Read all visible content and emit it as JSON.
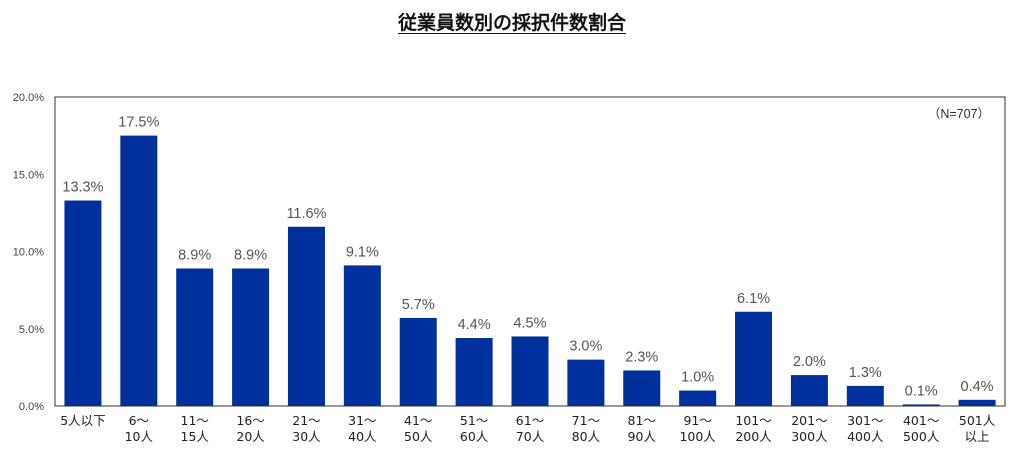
{
  "chart_data": {
    "type": "bar",
    "title": "従業員数別の採択件数割合",
    "annotation": "（N=707）",
    "categories": [
      [
        "5人以下"
      ],
      [
        "6～",
        "10人"
      ],
      [
        "11～",
        "15人"
      ],
      [
        "16～",
        "20人"
      ],
      [
        "21～",
        "30人"
      ],
      [
        "31～",
        "40人"
      ],
      [
        "41～",
        "50人"
      ],
      [
        "51～",
        "60人"
      ],
      [
        "61～",
        "70人"
      ],
      [
        "71～",
        "80人"
      ],
      [
        "81～",
        "90人"
      ],
      [
        "91～",
        "100人"
      ],
      [
        "101～",
        "200人"
      ],
      [
        "201～",
        "300人"
      ],
      [
        "301～",
        "400人"
      ],
      [
        "401～",
        "500人"
      ],
      [
        "501人",
        "以上"
      ]
    ],
    "values": [
      13.3,
      17.5,
      8.9,
      8.9,
      11.6,
      9.1,
      5.7,
      4.4,
      4.5,
      3.0,
      2.3,
      1.0,
      6.1,
      2.0,
      1.3,
      0.1,
      0.4
    ],
    "data_labels": [
      "13.3%",
      "17.5%",
      "8.9%",
      "8.9%",
      "11.6%",
      "9.1%",
      "5.7%",
      "4.4%",
      "4.5%",
      "3.0%",
      "2.3%",
      "1.0%",
      "6.1%",
      "2.0%",
      "1.3%",
      "0.1%",
      "0.4%"
    ],
    "ylim": [
      0,
      20
    ],
    "yticks": [
      "0.0%",
      "5.0%",
      "10.0%",
      "15.0%",
      "20.0%"
    ],
    "bar_color": "#00309b",
    "grid": false,
    "legend": "none"
  }
}
